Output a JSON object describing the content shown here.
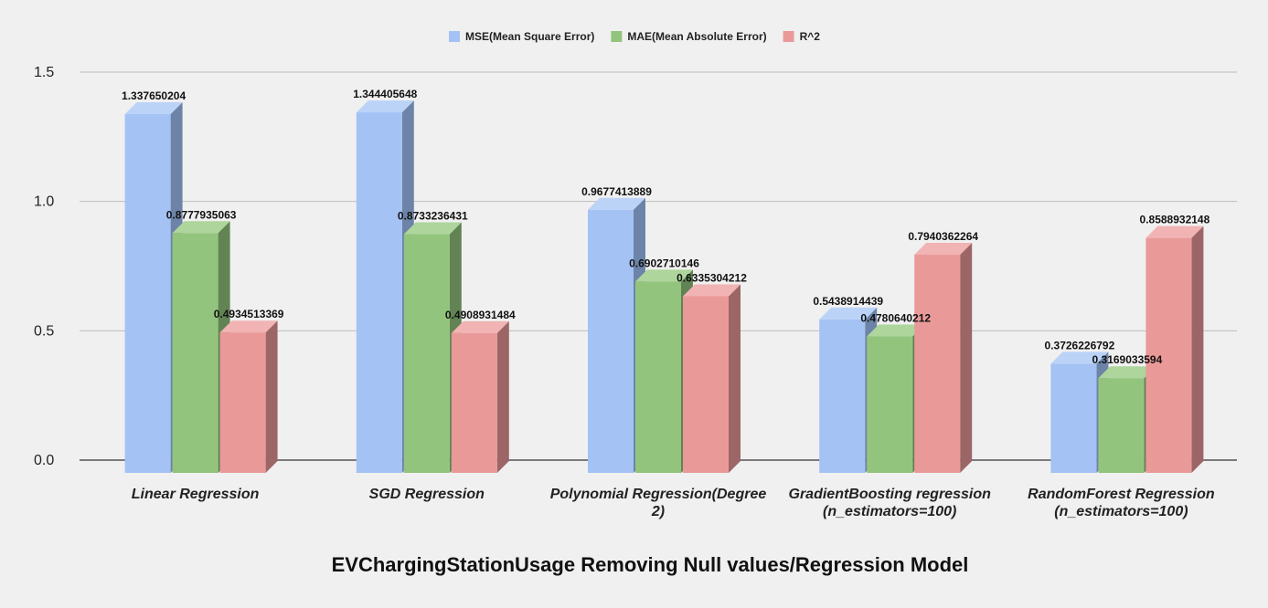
{
  "chart_data": {
    "type": "bar",
    "title": "",
    "xlabel": "EVChargingStationUsage Removing Null values/Regression Model",
    "ylabel": "",
    "ylim": [
      0,
      1.5
    ],
    "yticks": [
      "0.0",
      "0.5",
      "1.0",
      "1.5"
    ],
    "ytick_values": [
      0,
      0.5,
      1.0,
      1.5
    ],
    "legend_position": "top-center",
    "categories": [
      [
        "Linear Regression"
      ],
      [
        "SGD Regression"
      ],
      [
        "Polynomial Regression(Degree",
        "2)"
      ],
      [
        "GradientBoosting regression",
        "(n_estimators=100)"
      ],
      [
        "RandomForest Regression",
        "(n_estimators=100)"
      ]
    ],
    "series": [
      {
        "name": "MSE(Mean Square Error)",
        "color": "#a4c2f4",
        "side": "#6d84a8",
        "top": "#bcd3f8",
        "values": [
          1.337650204,
          1.344405648,
          0.9677413889,
          0.5438914439,
          0.3726226792
        ],
        "labels": [
          "1.337650204",
          "1.344405648",
          "0.9677413889",
          "0.5438914439",
          "0.3726226792"
        ]
      },
      {
        "name": "MAE(Mean Absolute Error)",
        "color": "#93c47d",
        "side": "#628354",
        "top": "#aed59c",
        "values": [
          0.8777935063,
          0.8733236431,
          0.6902710146,
          0.4780640212,
          0.3169033594
        ],
        "labels": [
          "0.8777935063",
          "0.8733236431",
          "0.6902710146",
          "0.4780640212",
          "0.3169033594"
        ]
      },
      {
        "name": "R^2",
        "color": "#ea9999",
        "side": "#9c6666",
        "top": "#f1b3b3",
        "values": [
          0.4934513369,
          0.4908931484,
          0.6335304212,
          0.7940362264,
          0.8588932148
        ],
        "labels": [
          "0.4934513369",
          "0.4908931484",
          "0.6335304212",
          "0.7940362264",
          "0.8588932148"
        ]
      }
    ]
  }
}
